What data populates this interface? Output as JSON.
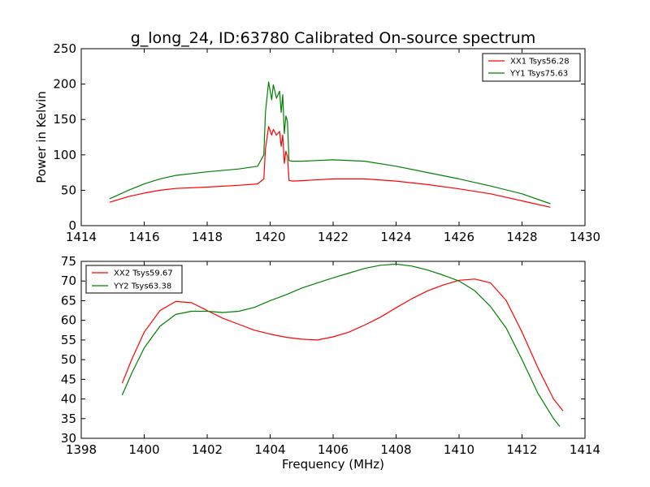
{
  "chart_data": [
    {
      "type": "line",
      "title": "g_long_24, ID:63780 Calibrated On-source spectrum",
      "xlabel": "",
      "ylabel": "Power in Kelvin",
      "xlim": [
        1414,
        1430
      ],
      "ylim": [
        0,
        250
      ],
      "xticks": [
        "1414",
        "1416",
        "1418",
        "1420",
        "1422",
        "1424",
        "1426",
        "1428",
        "1430"
      ],
      "yticks": [
        "0",
        "50",
        "100",
        "150",
        "200",
        "250"
      ],
      "legend_position": "top-right",
      "grid": false,
      "series": [
        {
          "name": "XX1 Tsys56.28",
          "color": "#ff0000",
          "x": [
            1414.9,
            1415.5,
            1416,
            1416.5,
            1417,
            1418,
            1419,
            1419.6,
            1419.8,
            1419.85,
            1419.95,
            1420.05,
            1420.1,
            1420.15,
            1420.2,
            1420.3,
            1420.35,
            1420.4,
            1420.45,
            1420.5,
            1420.55,
            1420.6,
            1420.7,
            1421,
            1422,
            1423,
            1424,
            1425,
            1426,
            1427,
            1428,
            1428.9
          ],
          "y": [
            33,
            41,
            46,
            50,
            52.5,
            54.5,
            57,
            59,
            66,
            108,
            140,
            128,
            136,
            132,
            128,
            133,
            112,
            128,
            88,
            105,
            98,
            64,
            63,
            63.5,
            66,
            66,
            63,
            58,
            52,
            45,
            35,
            26
          ]
        },
        {
          "name": "YY1 Tsys75.63",
          "color": "#008000",
          "x": [
            1414.9,
            1415.5,
            1416,
            1416.5,
            1417,
            1418,
            1419,
            1419.6,
            1419.8,
            1419.85,
            1419.95,
            1420.05,
            1420.1,
            1420.15,
            1420.2,
            1420.3,
            1420.35,
            1420.4,
            1420.45,
            1420.5,
            1420.55,
            1420.6,
            1420.7,
            1421,
            1422,
            1423,
            1424,
            1425,
            1426,
            1427,
            1428,
            1428.9
          ],
          "y": [
            38,
            50,
            59,
            66,
            71,
            76,
            80,
            84,
            100,
            160,
            203,
            178,
            199,
            190,
            180,
            190,
            160,
            185,
            130,
            155,
            147,
            92,
            91,
            91,
            93,
            91,
            84,
            75,
            66,
            56,
            45,
            31
          ]
        }
      ]
    },
    {
      "type": "line",
      "title": "",
      "xlabel": "Frequency (MHz)",
      "ylabel": "",
      "xlim": [
        1398,
        1414
      ],
      "ylim": [
        30,
        75
      ],
      "xticks": [
        "1398",
        "1400",
        "1402",
        "1404",
        "1406",
        "1408",
        "1410",
        "1412",
        "1414"
      ],
      "yticks": [
        "30",
        "35",
        "40",
        "45",
        "50",
        "55",
        "60",
        "65",
        "70",
        "75"
      ],
      "legend_position": "top-left",
      "grid": false,
      "series": [
        {
          "name": "XX2 Tsys59.67",
          "color": "#ff0000",
          "x": [
            1399.3,
            1399.6,
            1400,
            1400.5,
            1401,
            1401.5,
            1402,
            1402.5,
            1403,
            1403.5,
            1404,
            1404.5,
            1405,
            1405.5,
            1406,
            1406.5,
            1407,
            1407.5,
            1408,
            1408.5,
            1409,
            1409.5,
            1410,
            1410.5,
            1411,
            1411.5,
            1412,
            1412.5,
            1413,
            1413.3
          ],
          "y": [
            44,
            50,
            57,
            62.5,
            64.8,
            64.5,
            62.5,
            60.5,
            59,
            57.5,
            56.5,
            55.7,
            55.2,
            55,
            55.8,
            57,
            58.8,
            60.8,
            63.2,
            65.5,
            67.5,
            69,
            70.2,
            70.5,
            69.5,
            65,
            57,
            48,
            40,
            37
          ]
        },
        {
          "name": "YY2 Tsys63.38",
          "color": "#008000",
          "x": [
            1399.3,
            1399.6,
            1400,
            1400.5,
            1401,
            1401.5,
            1402,
            1402.5,
            1403,
            1403.5,
            1404,
            1404.5,
            1405,
            1405.5,
            1406,
            1406.5,
            1407,
            1407.5,
            1408,
            1408.5,
            1409,
            1409.5,
            1410,
            1410.5,
            1411,
            1411.5,
            1412,
            1412.5,
            1413,
            1413.2
          ],
          "y": [
            41,
            46.5,
            53,
            58.5,
            61.5,
            62.3,
            62.3,
            62,
            62.3,
            63.3,
            65,
            66.5,
            68.2,
            69.5,
            70.8,
            72,
            73.2,
            74,
            74.3,
            73.8,
            72.8,
            71.5,
            70,
            67.5,
            63.5,
            58,
            50,
            41.5,
            35,
            33
          ]
        }
      ]
    }
  ]
}
